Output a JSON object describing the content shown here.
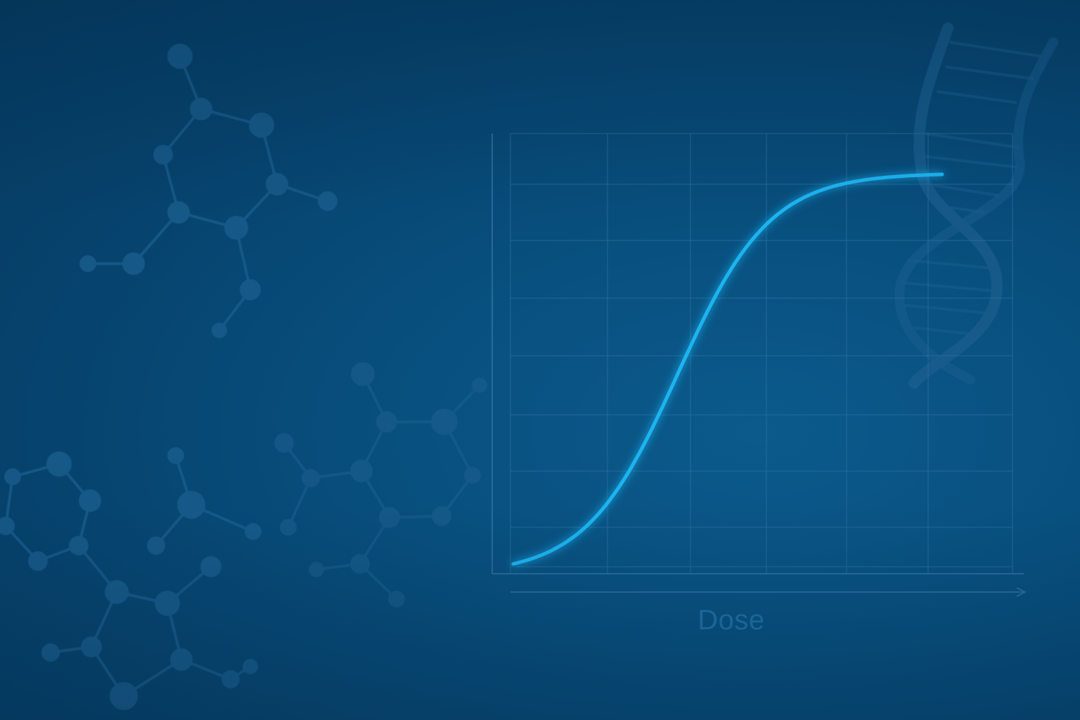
{
  "theme": {
    "background": "#064a78",
    "curve_color": "#1ab4f0",
    "grid_color": "#2b6e9e",
    "motif_color": "#1b5f8f"
  },
  "illustration": {
    "decorations": [
      "molecule-icon",
      "molecule-icon",
      "molecule-icon",
      "dna-helix-icon"
    ]
  },
  "chart_data": {
    "type": "line",
    "xlabel": "Dose",
    "ylabel": "",
    "grid": true,
    "series": [
      {
        "shape": "sigmoid",
        "x": [
          0,
          1,
          2,
          3,
          4,
          5,
          6
        ],
        "y": [
          0.0,
          0.1,
          0.45,
          0.8,
          0.95,
          0.99,
          1.0
        ]
      }
    ]
  }
}
